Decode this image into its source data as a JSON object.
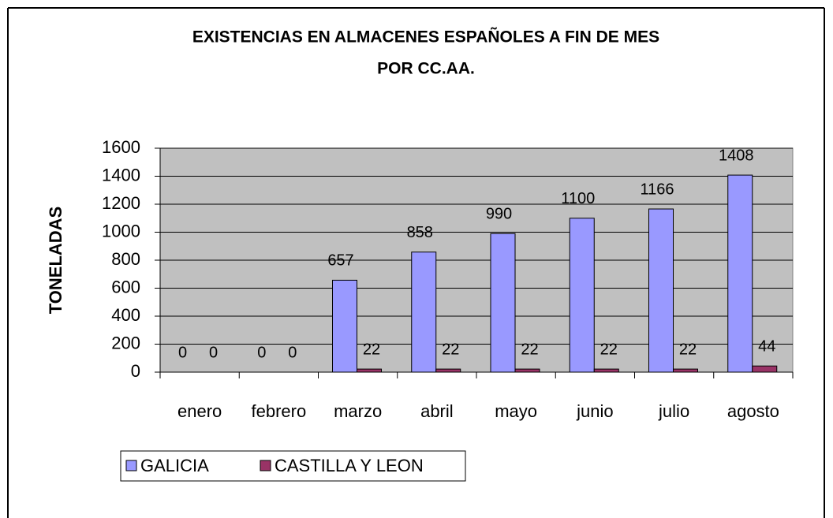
{
  "chart_data": {
    "type": "bar",
    "title": [
      "EXISTENCIAS EN ALMACENES ESPAÑOLES A FIN DE MES",
      "POR CC.AA."
    ],
    "y_label": "TONELADAS",
    "categories": [
      "enero",
      "febrero",
      "marzo",
      "abril",
      "mayo",
      "junio",
      "julio",
      "agosto"
    ],
    "series": [
      {
        "name": "GALICIA",
        "color": "#9999ff",
        "values": [
          0,
          0,
          657,
          858,
          990,
          1100,
          1166,
          1408
        ]
      },
      {
        "name": "CASTILLA Y LEON",
        "color": "#993366",
        "values": [
          0,
          0,
          22,
          22,
          22,
          22,
          22,
          44
        ]
      }
    ],
    "ylim": [
      0,
      1600
    ],
    "yticks": [
      0,
      200,
      400,
      600,
      800,
      1000,
      1200,
      1400,
      1600
    ],
    "grid": true,
    "legend": "bottom-left",
    "plot_background": "#c0c0c0"
  }
}
